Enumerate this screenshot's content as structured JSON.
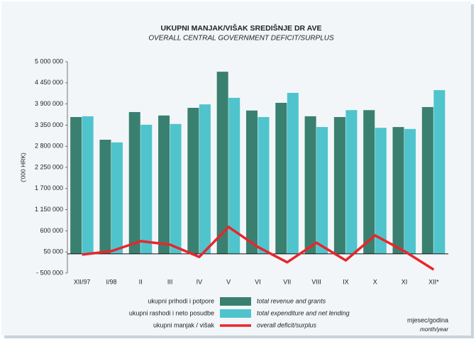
{
  "chart_data": {
    "type": "bar_line",
    "title": "UKUPNI MANJAK/VIŠAK SREDIŠNJE DR AVE",
    "subtitle": "OVERALL CENTRAL GOVERNMENT DEFICIT/SURPLUS",
    "y_label": "('000 HRK)",
    "x_label": "mjesec/godina",
    "x_label_en": "month/year",
    "categories": [
      "XII/97",
      "I/98",
      "II",
      "III",
      "IV",
      "V",
      "VI",
      "VII",
      "VIII",
      "IX",
      "X",
      "XI",
      "XII*"
    ],
    "series": [
      {
        "name": "total revenue and grants",
        "label_hr": "ukupni prihodi i potpore",
        "color": "#3a8070",
        "kind": "bar",
        "values": [
          3560000,
          2970000,
          3690000,
          3600000,
          3800000,
          4740000,
          3730000,
          3930000,
          3580000,
          3560000,
          3740000,
          3300000,
          3820000
        ]
      },
      {
        "name": "total expenditure and net lending",
        "label_hr": "ukupni rashodi i neto posudbe",
        "color": "#4fc4cc",
        "kind": "bar",
        "values": [
          3580000,
          2900000,
          3360000,
          3380000,
          3890000,
          4060000,
          3560000,
          4190000,
          3300000,
          3740000,
          3280000,
          3250000,
          4260000
        ]
      },
      {
        "name": "overall deficit/surplus",
        "label_hr": "ukupni manjak / višak",
        "color": "#e8262b",
        "kind": "line",
        "values": [
          -20000,
          70000,
          330000,
          240000,
          -80000,
          700000,
          180000,
          -220000,
          290000,
          -170000,
          480000,
          70000,
          -410000
        ]
      }
    ],
    "ylim": [
      -500000,
      5000000
    ],
    "yticks": [
      {
        "value": -500000,
        "label": "- 500 000"
      },
      {
        "value": 50000,
        "label": "50 000"
      },
      {
        "value": 600000,
        "label": "600 000"
      },
      {
        "value": 1150000,
        "label": "1 150 000"
      },
      {
        "value": 1700000,
        "label": "1 700 000"
      },
      {
        "value": 2250000,
        "label": "2 250 000"
      },
      {
        "value": 2800000,
        "label": "2 800 000"
      },
      {
        "value": 3350000,
        "label": "3 350 000"
      },
      {
        "value": 3900000,
        "label": "3 900 000"
      },
      {
        "value": 4450000,
        "label": "4 450 000"
      },
      {
        "value": 5000000,
        "label": "5 000 000"
      }
    ]
  }
}
